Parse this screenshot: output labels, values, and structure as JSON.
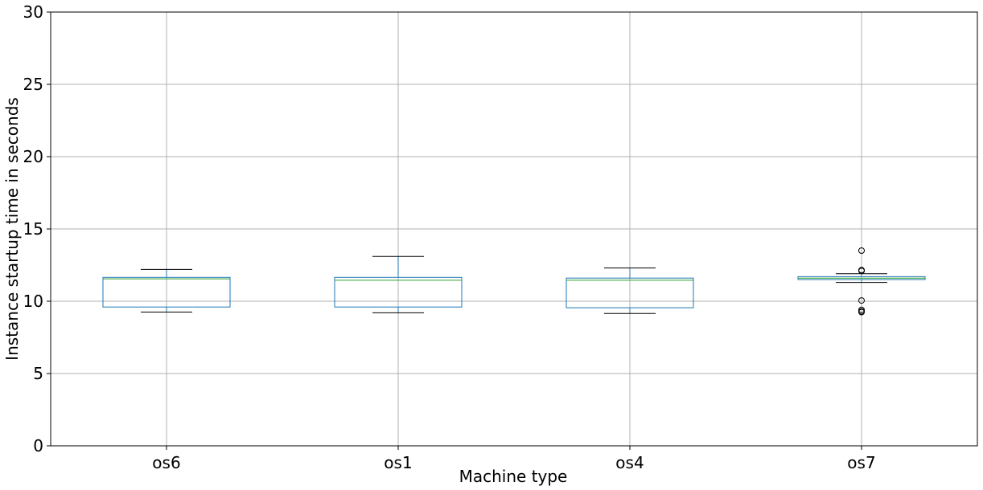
{
  "chart_data": {
    "type": "box",
    "title": "",
    "xlabel": "Machine type",
    "ylabel": "Instance startup time in seconds",
    "ylim": [
      0,
      30
    ],
    "yticks": [
      0,
      5,
      10,
      15,
      20,
      25,
      30
    ],
    "grid": true,
    "categories": [
      "os6",
      "os1",
      "os4",
      "os7"
    ],
    "boxes": [
      {
        "category": "os6",
        "whisker_low": 9.25,
        "q1": 9.6,
        "median": 11.55,
        "q3": 11.65,
        "whisker_high": 12.2,
        "outliers": []
      },
      {
        "category": "os1",
        "whisker_low": 9.2,
        "q1": 9.6,
        "median": 11.45,
        "q3": 11.65,
        "whisker_high": 13.1,
        "outliers": []
      },
      {
        "category": "os4",
        "whisker_low": 9.15,
        "q1": 9.55,
        "median": 11.45,
        "q3": 11.6,
        "whisker_high": 12.3,
        "outliers": []
      },
      {
        "category": "os7",
        "whisker_low": 11.3,
        "q1": 11.5,
        "median": 11.6,
        "q3": 11.7,
        "whisker_high": 11.9,
        "outliers": [
          13.5,
          12.15,
          12.1,
          10.05,
          9.4,
          9.3,
          9.25
        ]
      }
    ],
    "colors": {
      "box": "#1f77b4",
      "median": "#2ca02c",
      "whisker": "#000000",
      "grid": "#b0b0b0"
    }
  }
}
